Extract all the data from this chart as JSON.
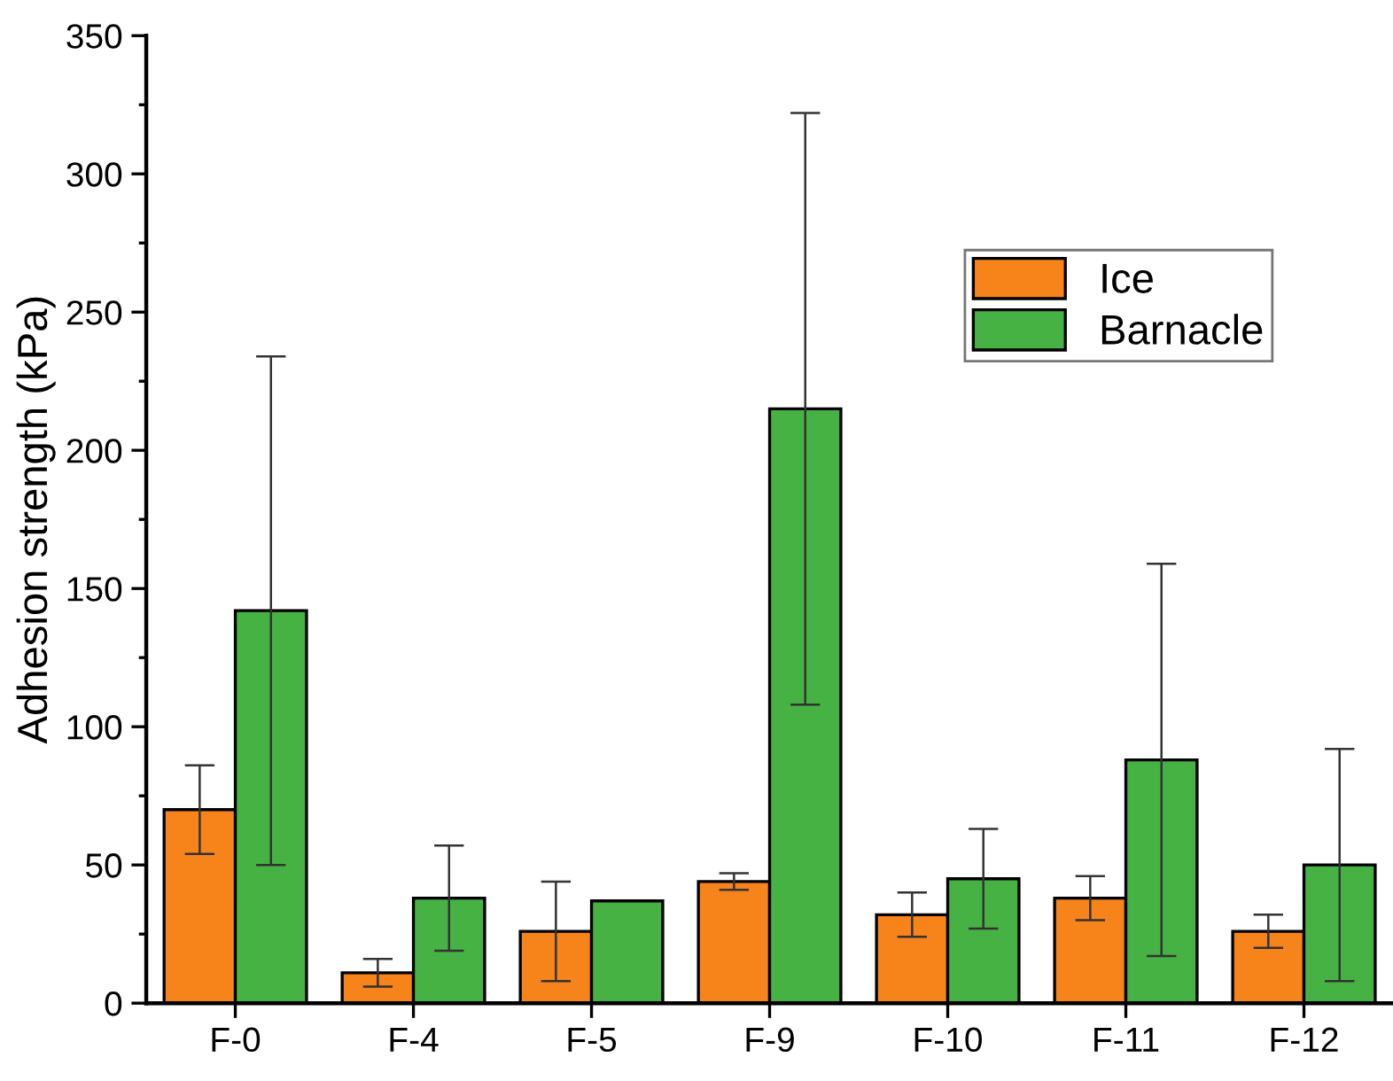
{
  "chart_data": {
    "type": "bar",
    "ylabel": "Adhesion strength (kPa)",
    "categories": [
      "F-0",
      "F-4",
      "F-5",
      "F-9",
      "F-10",
      "F-11",
      "F-12"
    ],
    "series": [
      {
        "name": "Ice",
        "color": "#f7831b",
        "values": [
          70,
          11,
          26,
          44,
          32,
          38,
          26
        ],
        "errors": [
          16,
          5,
          18,
          3,
          8,
          8,
          6
        ]
      },
      {
        "name": "Barnacle",
        "color": "#47b244",
        "values": [
          142,
          38,
          37,
          215,
          45,
          88,
          50
        ],
        "errors": [
          92,
          19,
          null,
          107,
          18,
          71,
          42
        ]
      }
    ],
    "ylim": [
      0,
      350
    ],
    "yticks": [
      0,
      50,
      100,
      150,
      200,
      250,
      300,
      350
    ],
    "grid": false,
    "legend": "top right"
  }
}
